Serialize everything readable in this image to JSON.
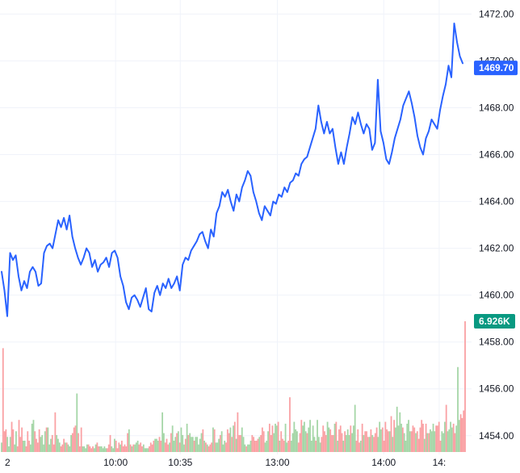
{
  "colors": {
    "price_line": "#2962ff",
    "price_badge": "#2962ff",
    "volume_badge": "#089981",
    "volume_up": "#a5d6a7",
    "volume_down": "#faa1a4",
    "grid": "#f0f3fa",
    "text": "#131722"
  },
  "price_badge_label": "1469.70",
  "volume_badge_label": "6.926K",
  "chart_data": {
    "type": "line",
    "title": "",
    "xlabel": "",
    "ylabel": "",
    "ylim": [
      1453.2,
      1472.6
    ],
    "grid": true,
    "y_ticks": [
      "1472.00",
      "1470.00",
      "1468.00",
      "1466.00",
      "1464.00",
      "1462.00",
      "1460.00",
      "1458.00",
      "1456.00",
      "1454.00"
    ],
    "x_ticks": [
      {
        "label": "2",
        "x": 0
      },
      {
        "label": "10:00",
        "x": 24
      },
      {
        "label": "10:35",
        "x": 38
      },
      {
        "label": "13:00",
        "x": 59
      },
      {
        "label": "14:00",
        "x": 82
      },
      {
        "label": "14:",
        "x": 94
      }
    ],
    "x_range": [
      -1,
      101
    ],
    "last_value": 1469.7,
    "series": [
      {
        "type": "line",
        "values": [
          1461.0,
          1460.2,
          1459.1,
          1461.8,
          1461.5,
          1461.7,
          1460.8,
          1460.2,
          1460.6,
          1460.3,
          1461.0,
          1461.2,
          1461.0,
          1460.4,
          1460.5,
          1461.8,
          1462.1,
          1462.2,
          1462.0,
          1462.6,
          1463.2,
          1462.9,
          1463.3,
          1462.8,
          1463.4,
          1462.5,
          1462.0,
          1461.6,
          1461.3,
          1461.6,
          1462.0,
          1461.8,
          1461.2,
          1461.5,
          1461.0,
          1461.3,
          1461.4,
          1461.6,
          1461.2,
          1461.8,
          1461.9,
          1461.6,
          1460.8,
          1460.4,
          1459.7,
          1459.4,
          1459.9,
          1460.0,
          1459.8,
          1459.5,
          1459.9,
          1460.3,
          1459.4,
          1459.3,
          1460.1,
          1460.4,
          1460.0,
          1460.5,
          1460.3,
          1460.7,
          1460.3,
          1460.5,
          1460.8,
          1460.2,
          1461.3,
          1461.6,
          1461.5,
          1461.9,
          1462.1,
          1462.3,
          1462.6,
          1462.7,
          1462.3,
          1462.0,
          1462.8,
          1462.5,
          1463.5,
          1463.8,
          1464.4,
          1464.2,
          1464.5,
          1464.0,
          1463.6,
          1464.3,
          1464.0,
          1464.6,
          1464.9,
          1465.3,
          1465.1,
          1464.4,
          1464.0,
          1463.5,
          1463.2,
          1463.8,
          1463.6,
          1463.4,
          1464.0,
          1463.9,
          1464.3,
          1464.2,
          1464.6,
          1464.4,
          1464.8,
          1464.9,
          1465.2,
          1465.1,
          1465.6,
          1465.8,
          1465.9,
          1466.3,
          1466.7,
          1467.1,
          1468.1,
          1467.4,
          1466.9,
          1467.4,
          1466.9,
          1467.1,
          1466.3,
          1465.6,
          1466.1,
          1465.6,
          1466.3,
          1466.9,
          1467.6,
          1467.3,
          1467.8,
          1467.3,
          1466.9,
          1467.3,
          1467.1,
          1466.2,
          1466.5,
          1469.2,
          1467.0,
          1466.5,
          1465.8,
          1465.6,
          1466.1,
          1466.7,
          1467.1,
          1467.5,
          1468.1,
          1468.4,
          1468.7,
          1468.2,
          1467.6,
          1466.8,
          1466.3,
          1466.0,
          1466.7,
          1467.0,
          1467.5,
          1467.3,
          1467.1,
          1467.9,
          1468.5,
          1469.0,
          1469.8,
          1469.3,
          1471.6,
          1470.8,
          1470.2,
          1469.9
        ]
      },
      {
        "type": "volume",
        "values": [
          0.5,
          5.5,
          1.1,
          1.2,
          0.8,
          0.3,
          0.8,
          1.6,
          1.2,
          0.4,
          1.1,
          0.3,
          1.7,
          0.8,
          1.3,
          0.6,
          0.6,
          0.3,
          1.1,
          0.6,
          0.4,
          1.5,
          1.7,
          1.1,
          0.7,
          0.5,
          1.2,
          0.8,
          0.9,
          0.4,
          1.1,
          1.3,
          1.3,
          0.4,
          0.7,
          0.9,
          0.4,
          2.1,
          0.9,
          0.7,
          0.5,
          0.3,
          0.4,
          0.7,
          0.5,
          0.5,
          0.4,
          0.3,
          0.9,
          1.0,
          1.3,
          1.4,
          3.1,
          1.0,
          0.3,
          1.3,
          0.3,
          0.3,
          0.2,
          0.4,
          0.4,
          0.3,
          0.2,
          0.3,
          0.2,
          0.4,
          0.5,
          0.3,
          0.3,
          0.3,
          0.2,
          0.3,
          0.2,
          0.2,
          0.4,
          0.9,
          0.3,
          0.2,
          0.7,
          0.6,
          0.2,
          0.5,
          0.4,
          0.6,
          0.3,
          0.4,
          0.3,
          1.0,
          1.2,
          0.4,
          0.3,
          0.4,
          0.4,
          0.5,
          0.6,
          0.4,
          0.5,
          0.3,
          0.4,
          0.2,
          0.2,
          0.2,
          0.3,
          0.5,
          0.4,
          0.6,
          0.7,
          0.7,
          0.6,
          0.8,
          0.6,
          2.1,
          1.0,
          0.5,
          0.7,
          0.4,
          0.5,
          1.0,
          1.4,
          0.6,
          0.8,
          1.0,
          1.1,
          0.5,
          1.3,
          0.9,
          0.4,
          0.7,
          1.5,
          0.9,
          1.0,
          0.8,
          0.8,
          0.6,
          0.8,
          0.8,
          0.4,
          0.7,
          1.0,
          1.2,
          0.6,
          0.5,
          0.4,
          0.3,
          0.4,
          0.5,
          1.3,
          1.2,
          0.5,
          0.5,
          0.7,
          0.9,
          1.1,
          0.4,
          0.6,
          0.5,
          1.2,
          1.0,
          1.3,
          0.8,
          1.4,
          1.6,
          0.7,
          2.1,
          0.9,
          0.9,
          1.3,
          0.8,
          0.4,
          0.3,
          0.4,
          0.4,
          0.6,
          0.9,
          0.8,
          0.6,
          0.6,
          0.7,
          0.8,
          0.9,
          1.3,
          1.1,
          0.5,
          0.6,
          1.1,
          1.5,
          0.9,
          1.4,
          1.0,
          1.5,
          1.4,
          1.6,
          0.6,
          1.1,
          0.7,
          0.6,
          1.5,
          0.5,
          0.6,
          2.9,
          0.6,
          1.0,
          1.6,
          1.2,
          1.1,
          0.5,
          1.0,
          1.7,
          1.4,
          1.6,
          1.1,
          1.0,
          1.3,
          1.7,
          0.6,
          1.4,
          0.8,
          0.6,
          1.7,
          0.8,
          0.5,
          0.8,
          1.4,
          1.1,
          0.9,
          1.6,
          1.3,
          1.2,
          0.9,
          0.9,
          1.5,
          1.6,
          0.6,
          1.2,
          1.4,
          1.0,
          0.6,
          1.1,
          0.9,
          1.2,
          0.9,
          1.4,
          1.0,
          1.4,
          2.5,
          0.6,
          1.2,
          0.5,
          0.6,
          1.5,
          0.9,
          1.1,
          1.1,
          0.8,
          0.8,
          1.2,
          0.9,
          0.8,
          1.0,
          1.3,
          0.8,
          1.6,
          1.2,
          1.3,
          0.6,
          1.6,
          1.2,
          1.1,
          1.1,
          1.9,
          0.8,
          1.7,
          1.3,
          2.4,
          1.4,
          2.1,
          1.5,
          1.3,
          1.0,
          0.6,
          1.5,
          1.7,
          1.1,
          1.1,
          1.4,
          1.3,
          1.0,
          1.1,
          0.7,
          1.3,
          1.7,
          1.5,
          0.7,
          1.5,
          1.0,
          1.0,
          1.2,
          1.1,
          1.5,
          1.1,
          1.4,
          1.4,
          1.6,
          0.6,
          1.1,
          1.0,
          1.6,
          2.5,
          1.1,
          1.2,
          1.6,
          1.3,
          1.5,
          1.0,
          1.4,
          4.5,
          1.7,
          2.0,
          1.8,
          2.2,
          6.926
        ]
      }
    ]
  }
}
